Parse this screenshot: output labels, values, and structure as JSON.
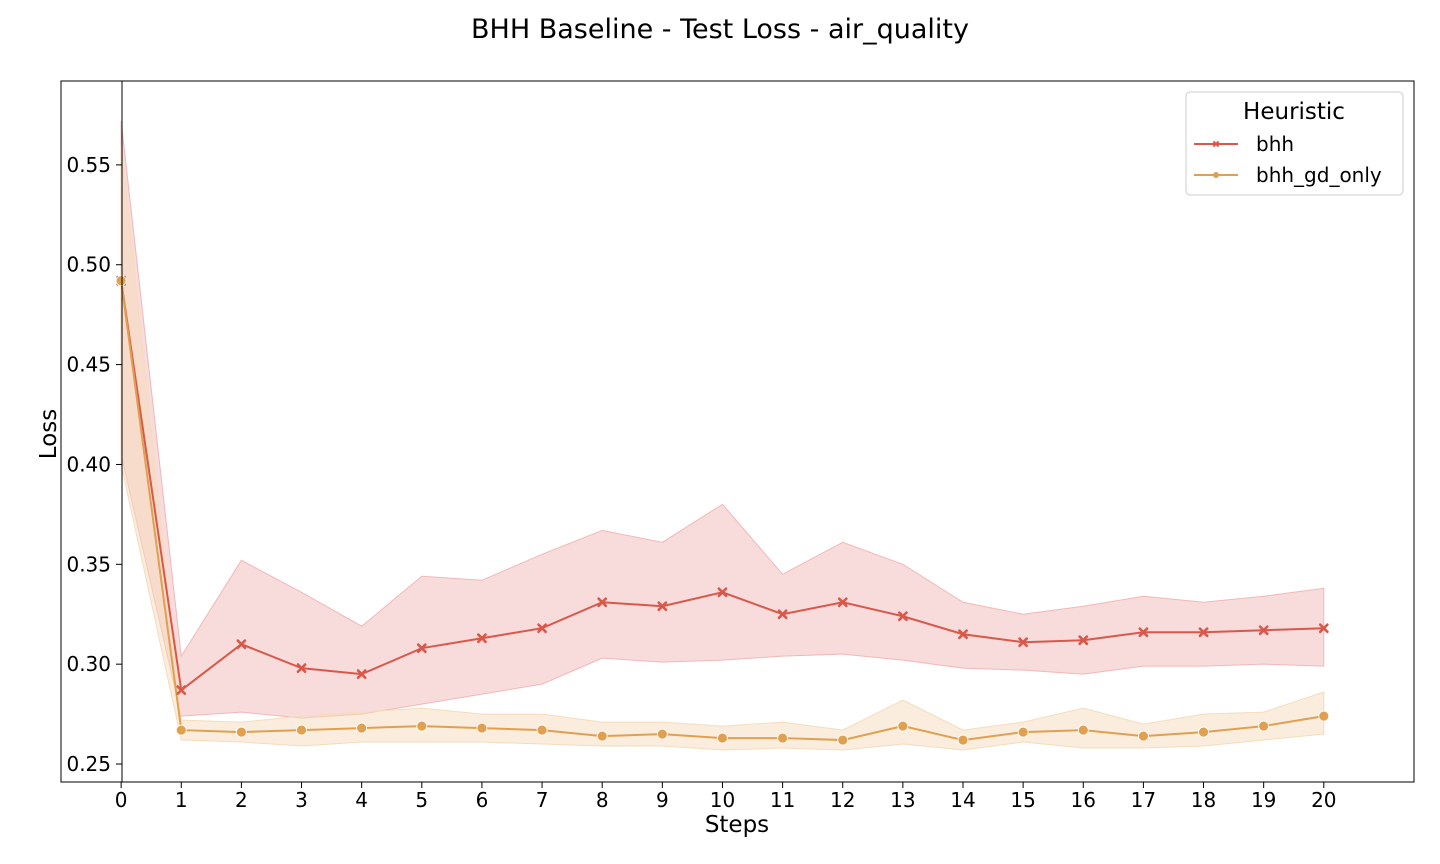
{
  "chart_data": {
    "type": "line",
    "title": "BHH Baseline - Test Loss - air_quality",
    "xlabel": "Steps",
    "ylabel": "Loss",
    "x": [
      0,
      1,
      2,
      3,
      4,
      5,
      6,
      7,
      8,
      9,
      10,
      11,
      12,
      13,
      14,
      15,
      16,
      17,
      18,
      19,
      20
    ],
    "xlim": [
      -1,
      21.5
    ],
    "ylim": [
      0.241,
      0.592
    ],
    "yticks": [
      0.25,
      0.3,
      0.35,
      0.4,
      0.45,
      0.5,
      0.55
    ],
    "ytick_labels": [
      "0.25",
      "0.30",
      "0.35",
      "0.40",
      "0.45",
      "0.50",
      "0.55"
    ],
    "grid": false,
    "legend": {
      "title": "Heuristic",
      "placement": "top-right"
    },
    "series": [
      {
        "name": "bhh",
        "color": "#d9584a",
        "band_color": "#f2b8b8",
        "marker": "x",
        "values": [
          0.492,
          0.287,
          0.31,
          0.298,
          0.295,
          0.308,
          0.313,
          0.318,
          0.331,
          0.329,
          0.336,
          0.325,
          0.331,
          0.324,
          0.315,
          0.311,
          0.312,
          0.316,
          0.316,
          0.317,
          0.318
        ],
        "lower": [
          0.405,
          0.274,
          0.276,
          0.273,
          0.275,
          0.28,
          0.285,
          0.29,
          0.303,
          0.301,
          0.302,
          0.304,
          0.305,
          0.302,
          0.298,
          0.297,
          0.295,
          0.299,
          0.299,
          0.3,
          0.299
        ],
        "upper": [
          0.572,
          0.304,
          0.352,
          0.336,
          0.319,
          0.344,
          0.342,
          0.355,
          0.367,
          0.361,
          0.38,
          0.345,
          0.361,
          0.35,
          0.331,
          0.325,
          0.329,
          0.334,
          0.331,
          0.334,
          0.338
        ]
      },
      {
        "name": "bhh_gd_only",
        "color": "#e0a050",
        "band_color": "#f5dcbc",
        "marker": "o",
        "values": [
          0.492,
          0.267,
          0.266,
          0.267,
          0.268,
          0.269,
          0.268,
          0.267,
          0.264,
          0.265,
          0.263,
          0.263,
          0.262,
          0.269,
          0.262,
          0.266,
          0.267,
          0.264,
          0.266,
          0.269,
          0.274
        ],
        "lower": [
          0.4,
          0.262,
          0.261,
          0.259,
          0.261,
          0.261,
          0.261,
          0.26,
          0.259,
          0.259,
          0.257,
          0.258,
          0.257,
          0.26,
          0.257,
          0.261,
          0.258,
          0.258,
          0.259,
          0.262,
          0.265
        ],
        "upper": [
          0.56,
          0.272,
          0.271,
          0.274,
          0.276,
          0.278,
          0.275,
          0.275,
          0.271,
          0.271,
          0.269,
          0.271,
          0.267,
          0.282,
          0.267,
          0.271,
          0.278,
          0.27,
          0.275,
          0.276,
          0.286
        ]
      }
    ]
  }
}
